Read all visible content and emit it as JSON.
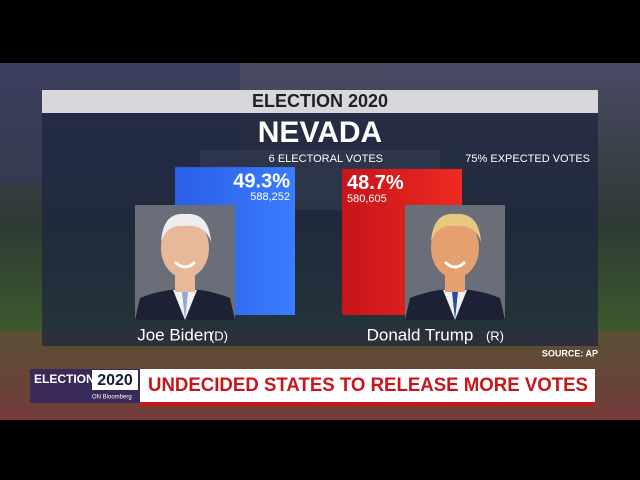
{
  "chart_data": {
    "type": "bar",
    "title": "ELECTION 2020",
    "subtitle": "NEVADA",
    "electoral_votes": "6 ELECTORAL VOTES",
    "expected_votes": "75% EXPECTED VOTES",
    "categories": [
      "Joe Biden",
      "Donald Trump"
    ],
    "parties": [
      "(D)",
      "(R)"
    ],
    "values": [
      49.3,
      48.7
    ],
    "value_labels": [
      "49.3%",
      "48.7%"
    ],
    "votes": [
      "588,252",
      "580,605"
    ],
    "colors": [
      "#2f6cf2",
      "#e0201c"
    ],
    "source": "SOURCE: AP",
    "ticker": {
      "brand_top": "ELECTION",
      "brand_year": "2020",
      "brand_sub": "ON Bloomberg",
      "headline": "UNDECIDED STATES TO RELEASE MORE VOTES"
    }
  }
}
